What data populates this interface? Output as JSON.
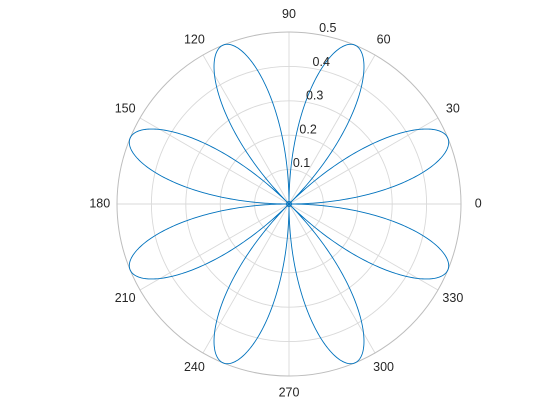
{
  "chart_data": {
    "type": "line",
    "coordinate_system": "polar",
    "title": "",
    "theta_unit": "degrees",
    "r_lim": [
      0,
      0.5
    ],
    "r_ticks": [
      0.1,
      0.2,
      0.3,
      0.4,
      0.5
    ],
    "r_tick_labels": [
      "0.1",
      "0.2",
      "0.3",
      "0.4",
      "0.5"
    ],
    "theta_ticks": [
      0,
      30,
      60,
      90,
      120,
      150,
      180,
      210,
      240,
      270,
      300,
      330
    ],
    "theta_tick_labels": [
      "0",
      "30",
      "60",
      "90",
      "120",
      "150",
      "180",
      "210",
      "240",
      "270",
      "300",
      "330"
    ],
    "grid": true,
    "series": [
      {
        "curve": "rose",
        "equation": "r = 0.5 * |sin(4·θ)|",
        "amplitude": 0.5,
        "petal_count": 8,
        "petal_peak_angles_deg": [
          22.5,
          67.5,
          112.5,
          157.5,
          202.5,
          247.5,
          292.5,
          337.5
        ],
        "color": "#0072BD"
      }
    ]
  }
}
